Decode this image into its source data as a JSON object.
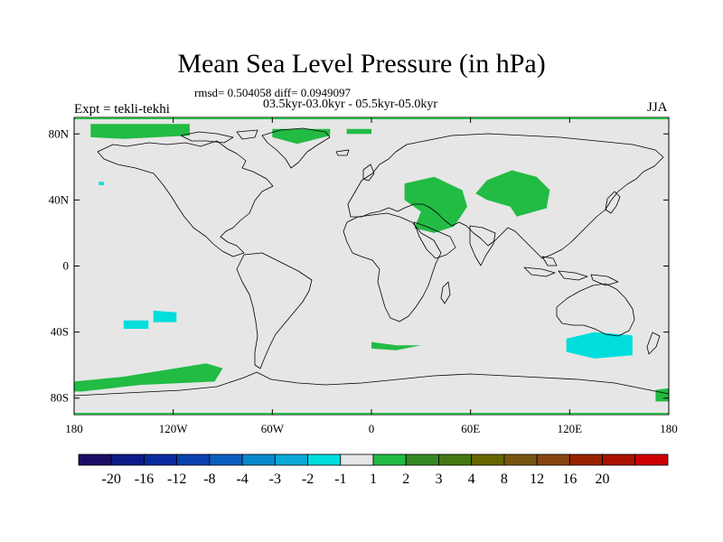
{
  "title": "Mean Sea Level Pressure (in hPa)",
  "stats_line": "rmsd= 0.504058 diff= 0.0949097",
  "period": "03.5kyr-03.0kyr - 05.5kyr-05.0kyr",
  "experiment": "Expt = tekli-tekhi",
  "season": "JJA",
  "map": {
    "lon_range": [
      -180,
      180
    ],
    "lat_range": [
      -90,
      90
    ],
    "background_color": "#e6e6e6",
    "coastline_color": "#000000",
    "lat_ticks": [
      {
        "value": 80,
        "label": "80N"
      },
      {
        "value": 40,
        "label": "40N"
      },
      {
        "value": 0,
        "label": "0"
      },
      {
        "value": -40,
        "label": "40S"
      },
      {
        "value": -80,
        "label": "80S"
      }
    ],
    "lon_ticks": [
      {
        "value": -180,
        "label": "180"
      },
      {
        "value": -120,
        "label": "120W"
      },
      {
        "value": -60,
        "label": "60W"
      },
      {
        "value": 0,
        "label": "0"
      },
      {
        "value": 60,
        "label": "60E"
      },
      {
        "value": 120,
        "label": "120E"
      },
      {
        "value": 180,
        "label": "180"
      }
    ],
    "anomalies": [
      {
        "name": "arctic-north-america",
        "category": "1 to 2",
        "color": "#22bb44",
        "polygon": [
          [
            -170,
            86
          ],
          [
            -110,
            86
          ],
          [
            -110,
            79
          ],
          [
            -150,
            77
          ],
          [
            -170,
            78
          ]
        ]
      },
      {
        "name": "greenland-north",
        "category": "1 to 2",
        "color": "#22bb44",
        "polygon": [
          [
            -60,
            83
          ],
          [
            -25,
            83
          ],
          [
            -25,
            79
          ],
          [
            -45,
            74
          ],
          [
            -60,
            78
          ]
        ]
      },
      {
        "name": "greenland-strip",
        "category": "1 to 2",
        "color": "#22bb44",
        "polygon": [
          [
            -15,
            83
          ],
          [
            0,
            83
          ],
          [
            0,
            80
          ],
          [
            -15,
            80
          ]
        ]
      },
      {
        "name": "mediterranean-middle-east",
        "category": "1 to 2",
        "color": "#22bb44",
        "polygon": [
          [
            20,
            50
          ],
          [
            38,
            54
          ],
          [
            55,
            46
          ],
          [
            58,
            36
          ],
          [
            50,
            24
          ],
          [
            38,
            20
          ],
          [
            26,
            23
          ],
          [
            30,
            33
          ],
          [
            20,
            40
          ]
        ]
      },
      {
        "name": "central-asia",
        "category": "1 to 2",
        "color": "#22bb44",
        "polygon": [
          [
            63,
            44
          ],
          [
            70,
            52
          ],
          [
            85,
            58
          ],
          [
            100,
            54
          ],
          [
            108,
            46
          ],
          [
            106,
            35
          ],
          [
            88,
            30
          ],
          [
            84,
            36
          ],
          [
            70,
            40
          ]
        ]
      },
      {
        "name": "south-atlantic-patch",
        "category": "1 to 2",
        "color": "#22bb44",
        "polygon": [
          [
            0,
            -46
          ],
          [
            15,
            -48
          ],
          [
            30,
            -48
          ],
          [
            15,
            -51
          ],
          [
            0,
            -50
          ]
        ]
      },
      {
        "name": "south-pacific-green",
        "category": "1 to 2",
        "color": "#22bb44",
        "polygon": [
          [
            -100,
            -59
          ],
          [
            -90,
            -62
          ],
          [
            -95,
            -70
          ],
          [
            -140,
            -72
          ],
          [
            -175,
            -76
          ],
          [
            -180,
            -76
          ],
          [
            -180,
            -70
          ],
          [
            -150,
            -67
          ]
        ]
      },
      {
        "name": "antarctic-east-patch",
        "category": "1 to 2",
        "color": "#22bb44",
        "polygon": [
          [
            172,
            -75
          ],
          [
            180,
            -74
          ],
          [
            180,
            -82
          ],
          [
            172,
            -82
          ]
        ]
      },
      {
        "name": "south-pacific-cyan-west",
        "category": "-2 to -1",
        "color": "#00dddd",
        "polygon": [
          [
            -150,
            -33
          ],
          [
            -135,
            -33
          ],
          [
            -135,
            -38
          ],
          [
            -150,
            -38
          ]
        ]
      },
      {
        "name": "south-pacific-cyan-east",
        "category": "-2 to -1",
        "color": "#00dddd",
        "polygon": [
          [
            -132,
            -27
          ],
          [
            -118,
            -28
          ],
          [
            -118,
            -34
          ],
          [
            -132,
            -34
          ]
        ]
      },
      {
        "name": "australia-south-cyan",
        "category": "-2 to -1",
        "color": "#00dddd",
        "polygon": [
          [
            118,
            -44
          ],
          [
            135,
            -40
          ],
          [
            158,
            -42
          ],
          [
            158,
            -54
          ],
          [
            135,
            -56
          ],
          [
            118,
            -52
          ]
        ]
      },
      {
        "name": "north-pacific-cyan-dot",
        "category": "-2 to -1",
        "color": "#00dddd",
        "polygon": [
          [
            -165,
            51
          ],
          [
            -162,
            51
          ],
          [
            -162,
            49
          ],
          [
            -165,
            49
          ]
        ]
      }
    ]
  },
  "colorbar": {
    "colors": [
      "#1a0d66",
      "#0d1a88",
      "#0a2aa0",
      "#0a40b0",
      "#0a5fc0",
      "#0a88cc",
      "#0aa9d8",
      "#00dddd",
      "#e6e6e6",
      "#22bb44",
      "#338822",
      "#447711",
      "#666600",
      "#775511",
      "#884411",
      "#992200",
      "#aa1100",
      "#cc0000"
    ],
    "labels": [
      "-20",
      "-16",
      "-12",
      "-8",
      "-4",
      "-3",
      "-2",
      "-1",
      "1",
      "2",
      "3",
      "4",
      "8",
      "12",
      "16",
      "20"
    ]
  }
}
